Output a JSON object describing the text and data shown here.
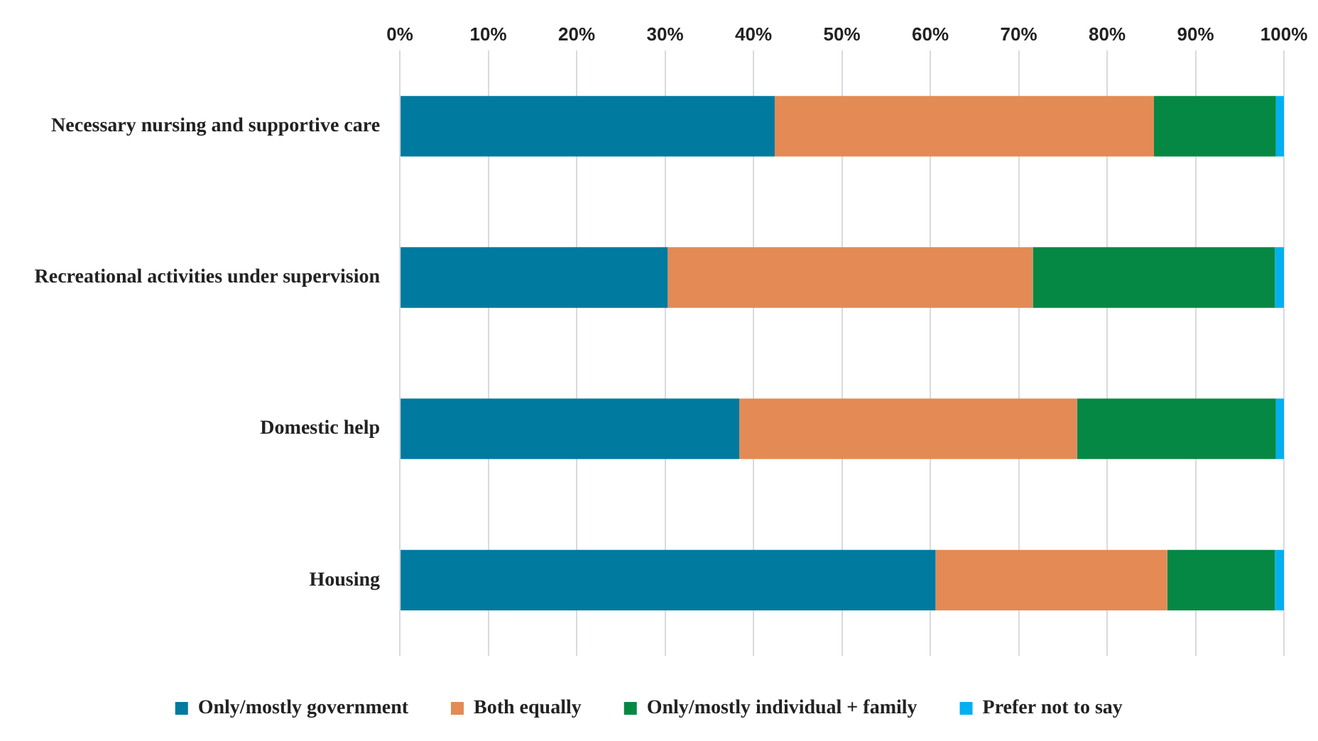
{
  "chart_data": {
    "type": "bar",
    "orientation": "horizontal",
    "stacked": true,
    "categories": [
      "Necessary nursing and supportive care",
      "Recreational activities under supervision",
      "Domestic help",
      "Housing"
    ],
    "series": [
      {
        "name": "Only/mostly government",
        "color": "#007a9e",
        "values": [
          42.4,
          30.3,
          38.4,
          60.6
        ]
      },
      {
        "name": "Both equally",
        "color": "#e38a55",
        "values": [
          42.9,
          41.3,
          38.2,
          26.2
        ]
      },
      {
        "name": "Only/mostly individual + family",
        "color": "#058844",
        "values": [
          13.8,
          27.4,
          22.5,
          12.2
        ]
      },
      {
        "name": "Prefer not to say",
        "color": "#00b0f0",
        "values": [
          0.9,
          1.0,
          0.9,
          1.0
        ]
      }
    ],
    "xlim": [
      0,
      100
    ],
    "xticks": [
      {
        "value": 0,
        "label": "0%"
      },
      {
        "value": 10,
        "label": "10%"
      },
      {
        "value": 20,
        "label": "20%"
      },
      {
        "value": 30,
        "label": "30%"
      },
      {
        "value": 40,
        "label": "40%"
      },
      {
        "value": 50,
        "label": "50%"
      },
      {
        "value": 60,
        "label": "60%"
      },
      {
        "value": 70,
        "label": "70%"
      },
      {
        "value": 80,
        "label": "80%"
      },
      {
        "value": 90,
        "label": "90%"
      },
      {
        "value": 100,
        "label": "100%"
      }
    ],
    "grid": "x",
    "legend": "bottom"
  }
}
